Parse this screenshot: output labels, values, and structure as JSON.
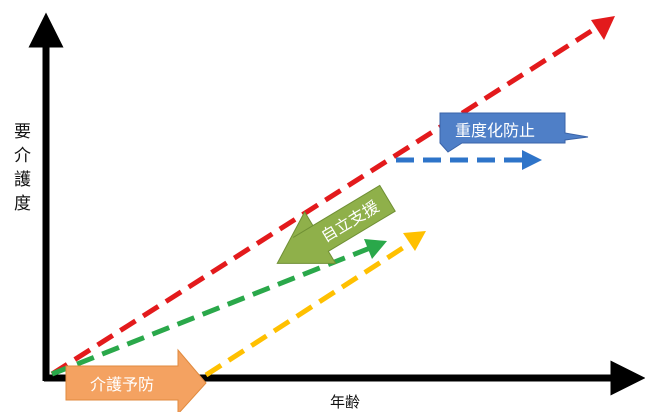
{
  "axes": {
    "y_label": "要介護度",
    "x_label": "年齢"
  },
  "arrows": [
    {
      "name": "red-trend-arrow",
      "color": "#e31a1c"
    },
    {
      "name": "green-trend-arrow",
      "color": "#2aa84a"
    },
    {
      "name": "yellow-trend-arrow",
      "color": "#ffc000"
    },
    {
      "name": "blue-trend-arrow",
      "color": "#2e74c9"
    }
  ],
  "callouts": {
    "prevention": {
      "label": "介護予防",
      "color": "#f4a261"
    },
    "independence": {
      "label": "自立支援",
      "color": "#8fb04a"
    },
    "severity": {
      "label": "重度化防止",
      "color": "#4f7fc7"
    }
  }
}
